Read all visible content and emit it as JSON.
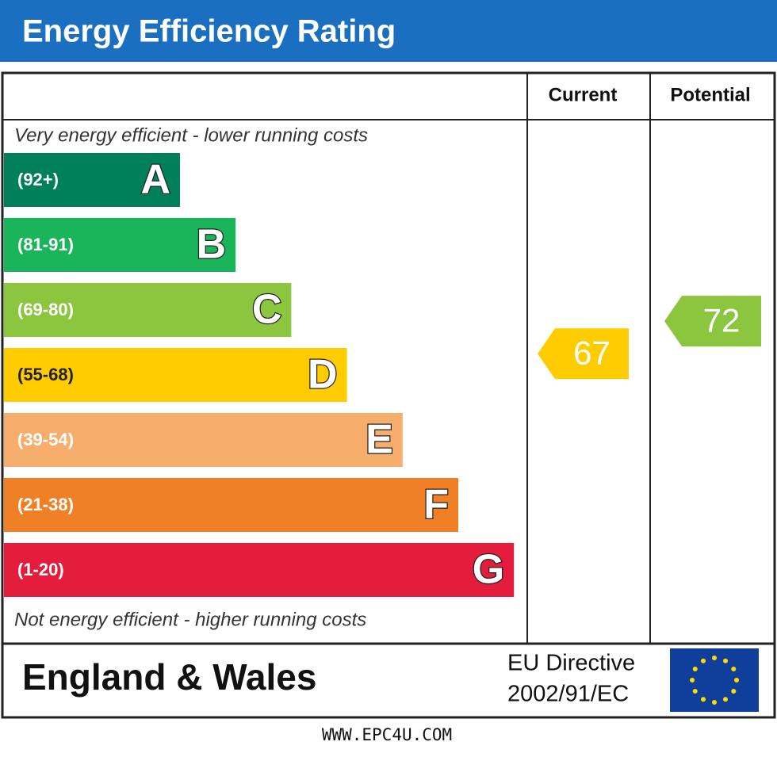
{
  "header": {
    "title": "Energy Efficiency Rating"
  },
  "columns": [
    "Current",
    "Potential"
  ],
  "top_note": "Very energy efficient - lower running costs",
  "bottom_note": "Not energy efficient - higher running costs",
  "bands": [
    {
      "range": "(92+)",
      "letter": "A",
      "color": "#00805a"
    },
    {
      "range": "(81-91)",
      "letter": "B",
      "color": "#1ab45b"
    },
    {
      "range": "(69-80)",
      "letter": "C",
      "color": "#8cc63f"
    },
    {
      "range": "(55-68)",
      "letter": "D",
      "color": "#ffcc00"
    },
    {
      "range": "(39-54)",
      "letter": "E",
      "color": "#f7ad6b"
    },
    {
      "range": "(21-38)",
      "letter": "F",
      "color": "#ef8026"
    },
    {
      "range": "(1-20)",
      "letter": "G",
      "color": "#e31d3b"
    }
  ],
  "current": {
    "value": 67,
    "color": "#ffcc00"
  },
  "potential": {
    "value": 72,
    "color": "#8cc63f"
  },
  "footer": {
    "region": "England & Wales",
    "directive": [
      "EU Directive",
      "2002/91/EC"
    ]
  },
  "source": "WWW.EPC4U.COM"
}
